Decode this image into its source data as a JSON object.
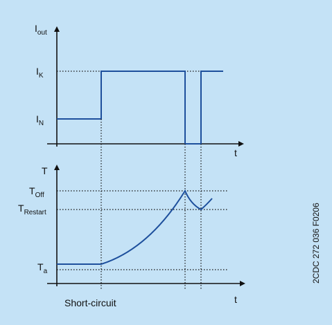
{
  "top_chart": {
    "y_axis": {
      "base": "I",
      "sub": "out"
    },
    "x_axis": "t",
    "levels": [
      {
        "base": "I",
        "sub": "K"
      },
      {
        "base": "I",
        "sub": "N"
      }
    ]
  },
  "bottom_chart": {
    "y_axis": "T",
    "x_axis": "t",
    "levels": [
      {
        "base": "T",
        "sub": "Off"
      },
      {
        "base": "T",
        "sub": "Restart"
      },
      {
        "base": "T",
        "sub": "a"
      }
    ],
    "event": "Short-circuit"
  },
  "figure_code": "2CDC 272 036 F0206"
}
